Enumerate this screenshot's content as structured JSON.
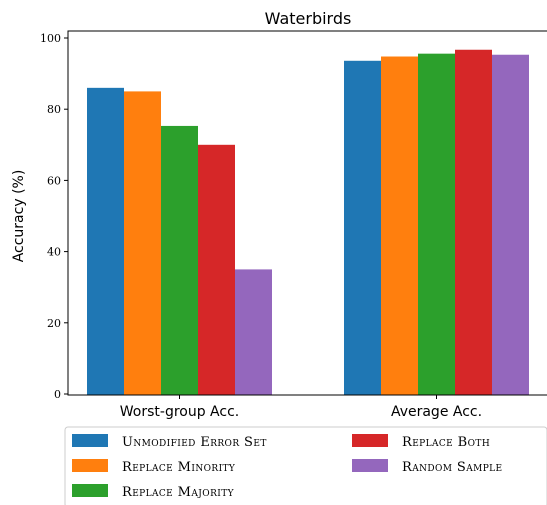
{
  "chart_data": {
    "type": "bar",
    "title": "Waterbirds",
    "ylabel": "Accuracy (%)",
    "xlabel": "",
    "categories": [
      "Worst-group Acc.",
      "Average Acc."
    ],
    "ylim": [
      0,
      100
    ],
    "yticks": [
      0,
      20,
      40,
      60,
      80,
      100
    ],
    "grid": false,
    "legend_position": "bottom",
    "series": [
      {
        "name": "Unmodified Error Set",
        "color": "#1f77b4",
        "values": [
          86.0,
          93.6
        ]
      },
      {
        "name": "Replace Minority",
        "color": "#ff7f0e",
        "values": [
          85.0,
          94.8
        ]
      },
      {
        "name": "Replace Majority",
        "color": "#2ca02c",
        "values": [
          75.3,
          95.6
        ]
      },
      {
        "name": "Replace Both",
        "color": "#d62728",
        "values": [
          70.0,
          96.7
        ]
      },
      {
        "name": "Random Sample",
        "color": "#9467bd",
        "values": [
          35.0,
          95.3
        ]
      }
    ]
  }
}
